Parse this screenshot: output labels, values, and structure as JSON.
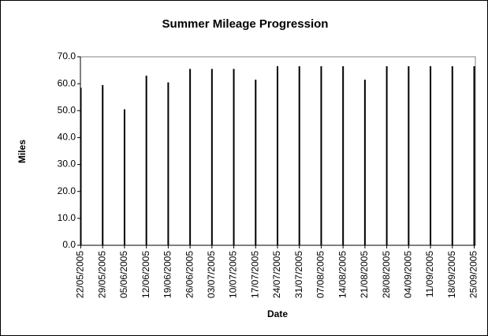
{
  "chart_data": {
    "type": "bar",
    "title": "Summer Mileage Progression",
    "x_label": "Date",
    "y_label": "Miles",
    "categories": [
      "22/05/2005",
      "29/05/2005",
      "05/06/2005",
      "12/06/2005",
      "19/06/2005",
      "26/06/2005",
      "03/07/2005",
      "10/07/2005",
      "17/07/2005",
      "24/07/2005",
      "31/07/2005",
      "07/08/2005",
      "14/08/2005",
      "21/08/2005",
      "28/08/2005",
      "04/09/2005",
      "11/09/2005",
      "18/09/2005",
      "25/09/2005"
    ],
    "values": [
      58.5,
      59.5,
      50.5,
      63,
      60.5,
      65.5,
      65.5,
      65.5,
      61.5,
      66.5,
      66.5,
      66.5,
      66.5,
      61.5,
      66.5,
      66.5,
      66.5,
      66.5,
      66.5
    ],
    "color": "#000000",
    "ylim": [
      0,
      70
    ],
    "yticks": [
      {
        "value": 0,
        "label": "0.0"
      },
      {
        "value": 10,
        "label": "10.0"
      },
      {
        "value": 20,
        "label": "20.0"
      },
      {
        "value": 30,
        "label": "30.0"
      },
      {
        "value": 40,
        "label": "40.0"
      },
      {
        "value": 50,
        "label": "50.0"
      },
      {
        "value": 60,
        "label": "60.0"
      },
      {
        "value": 70,
        "label": "70.0"
      }
    ],
    "grid": false
  }
}
